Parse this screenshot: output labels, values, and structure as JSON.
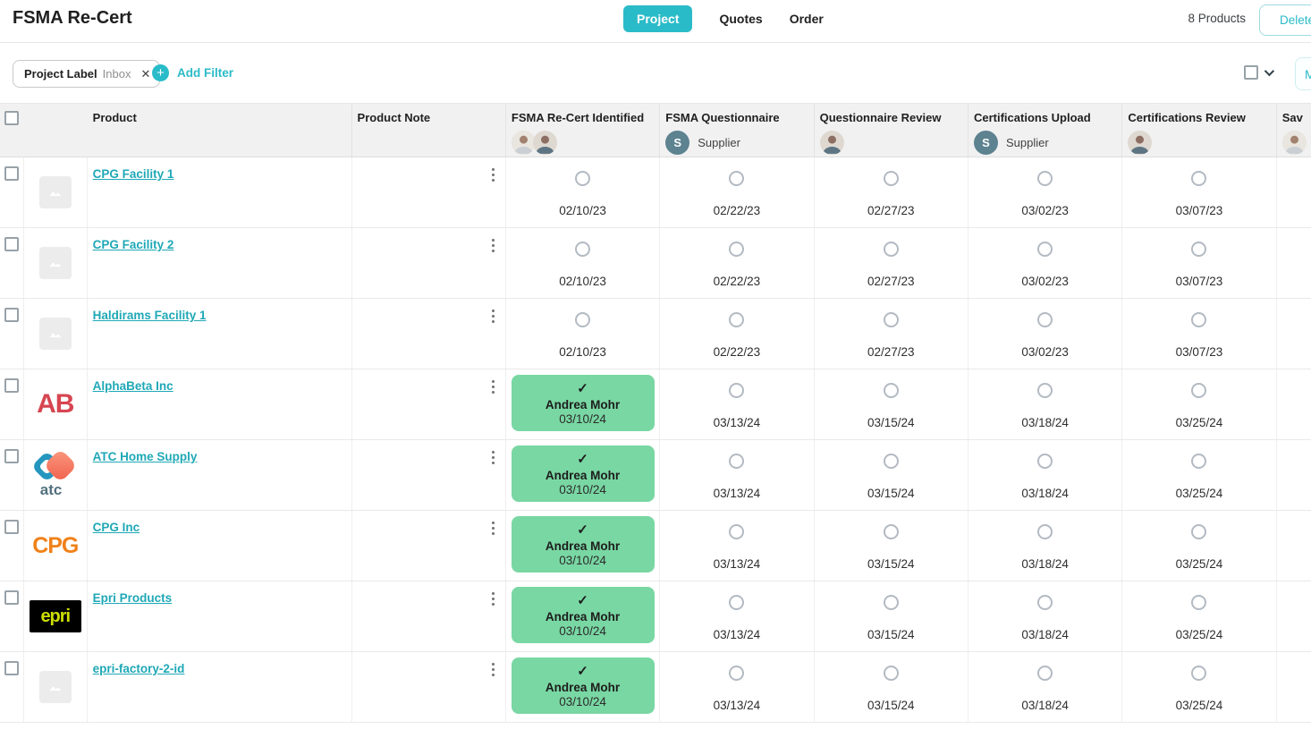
{
  "header": {
    "title": "FSMA Re-Cert",
    "tabs": [
      {
        "label": "Project",
        "active": true
      },
      {
        "label": "Quotes",
        "active": false
      },
      {
        "label": "Order",
        "active": false
      }
    ],
    "products_count": "8 Products",
    "delete_label": "Delete"
  },
  "filter_bar": {
    "chip_label": "Project Label",
    "chip_value": "Inbox",
    "add_filter_label": "Add Filter",
    "more_button_label": "M"
  },
  "table": {
    "columns": [
      {
        "label": "Product"
      },
      {
        "label": "Product Note"
      },
      {
        "label": "FSMA Re-Cert Identified",
        "avatars": 2
      },
      {
        "label": "FSMA Questionnaire",
        "avatar_initial": "S",
        "assignee": "Supplier"
      },
      {
        "label": "Questionnaire Review",
        "avatars": 1
      },
      {
        "label": "Certifications Upload",
        "avatar_initial": "S",
        "assignee": "Supplier"
      },
      {
        "label": "Certifications Review",
        "avatars": 1
      },
      {
        "label": "Sav",
        "avatars": 1
      }
    ],
    "rows": [
      {
        "product": "CPG Facility 1",
        "logo": {
          "type": "placeholder"
        },
        "steps": [
          {
            "status": "pending",
            "date": "02/10/23"
          },
          {
            "status": "pending",
            "date": "02/22/23"
          },
          {
            "status": "pending",
            "date": "02/27/23"
          },
          {
            "status": "pending",
            "date": "03/02/23"
          },
          {
            "status": "pending",
            "date": "03/07/23"
          }
        ]
      },
      {
        "product": "CPG Facility 2",
        "logo": {
          "type": "placeholder"
        },
        "steps": [
          {
            "status": "pending",
            "date": "02/10/23"
          },
          {
            "status": "pending",
            "date": "02/22/23"
          },
          {
            "status": "pending",
            "date": "02/27/23"
          },
          {
            "status": "pending",
            "date": "03/02/23"
          },
          {
            "status": "pending",
            "date": "03/07/23"
          }
        ]
      },
      {
        "product": "Haldirams Facility 1",
        "logo": {
          "type": "placeholder"
        },
        "steps": [
          {
            "status": "pending",
            "date": "02/10/23"
          },
          {
            "status": "pending",
            "date": "02/22/23"
          },
          {
            "status": "pending",
            "date": "02/27/23"
          },
          {
            "status": "pending",
            "date": "03/02/23"
          },
          {
            "status": "pending",
            "date": "03/07/23"
          }
        ]
      },
      {
        "product": "AlphaBeta Inc",
        "logo": {
          "type": "text",
          "text": "AB",
          "color": "#d64550",
          "size": "30px"
        },
        "steps": [
          {
            "status": "done",
            "assignee": "Andrea Mohr",
            "date": "03/10/24"
          },
          {
            "status": "pending",
            "date": "03/13/24"
          },
          {
            "status": "pending",
            "date": "03/15/24"
          },
          {
            "status": "pending",
            "date": "03/18/24"
          },
          {
            "status": "pending",
            "date": "03/25/24"
          }
        ]
      },
      {
        "product": "ATC Home Supply",
        "logo": {
          "type": "atc",
          "text": "atc"
        },
        "steps": [
          {
            "status": "done",
            "assignee": "Andrea Mohr",
            "date": "03/10/24"
          },
          {
            "status": "pending",
            "date": "03/13/24"
          },
          {
            "status": "pending",
            "date": "03/15/24"
          },
          {
            "status": "pending",
            "date": "03/18/24"
          },
          {
            "status": "pending",
            "date": "03/25/24"
          }
        ]
      },
      {
        "product": "CPG Inc",
        "logo": {
          "type": "text",
          "text": "CPG",
          "color": "#f08119",
          "size": "25px"
        },
        "steps": [
          {
            "status": "done",
            "assignee": "Andrea Mohr",
            "date": "03/10/24"
          },
          {
            "status": "pending",
            "date": "03/13/24"
          },
          {
            "status": "pending",
            "date": "03/15/24"
          },
          {
            "status": "pending",
            "date": "03/18/24"
          },
          {
            "status": "pending",
            "date": "03/25/24"
          }
        ]
      },
      {
        "product": "Epri Products",
        "logo": {
          "type": "epri",
          "text": "epri"
        },
        "steps": [
          {
            "status": "done",
            "assignee": "Andrea Mohr",
            "date": "03/10/24"
          },
          {
            "status": "pending",
            "date": "03/13/24"
          },
          {
            "status": "pending",
            "date": "03/15/24"
          },
          {
            "status": "pending",
            "date": "03/18/24"
          },
          {
            "status": "pending",
            "date": "03/25/24"
          }
        ]
      },
      {
        "product": "epri-factory-2-id",
        "logo": {
          "type": "placeholder"
        },
        "steps": [
          {
            "status": "done",
            "assignee": "Andrea Mohr",
            "date": "03/10/24"
          },
          {
            "status": "pending",
            "date": "03/13/24"
          },
          {
            "status": "pending",
            "date": "03/15/24"
          },
          {
            "status": "pending",
            "date": "03/18/24"
          },
          {
            "status": "pending",
            "date": "03/25/24"
          }
        ]
      }
    ]
  },
  "colors": {
    "accent_teal": "#2abbc8",
    "link_teal": "#1fa8b6",
    "done_green": "#79d7a3",
    "supplier_avatar": "#5d8290",
    "header_gray": "#f1f1f1"
  }
}
